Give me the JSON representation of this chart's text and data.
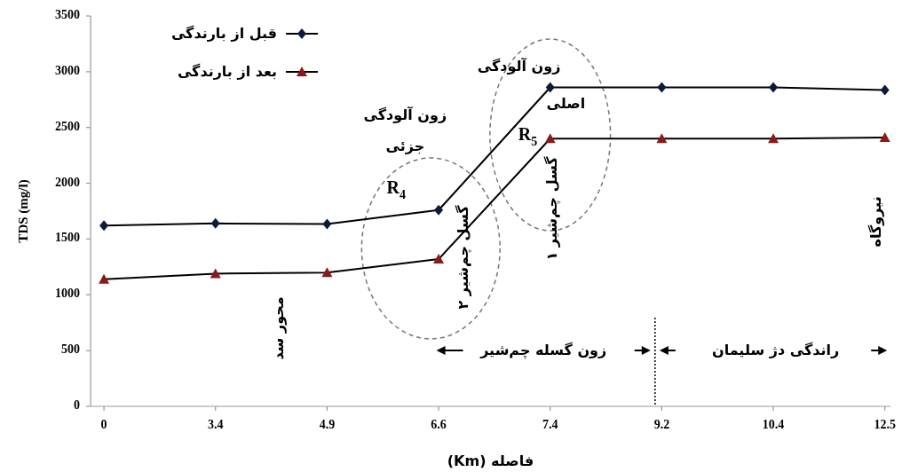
{
  "chart_data": {
    "type": "line",
    "xlabel": "فاصله (Km)",
    "ylabel": "TDS (mg/l)",
    "categories": [
      "0",
      "3.4",
      "4.9",
      "6.6",
      "7.4",
      "9.2",
      "10.4",
      "12.5"
    ],
    "series": [
      {
        "name": "قبل از بارندگی",
        "color": "#0d1b3a",
        "marker": "diamond",
        "values": [
          1620,
          1640,
          1635,
          1760,
          2860,
          2860,
          2860,
          2835
        ]
      },
      {
        "name": "بعد از بارندگی",
        "color": "#8b1a1a",
        "marker": "triangle",
        "values": [
          1140,
          1190,
          1200,
          1320,
          2400,
          2400,
          2400,
          2410
        ]
      }
    ],
    "ylim": [
      0,
      3500
    ],
    "yticks": [
      0,
      500,
      1000,
      1500,
      2000,
      2500,
      3000,
      3500
    ],
    "legend": "top left",
    "grid": false,
    "annotations": [
      "زون آلودگی",
      "جزئی",
      "زون آلودگی",
      "اصلی",
      "R$_{4}$",
      "R$_{5}$",
      "گسل چم‌شیر ۲",
      "گسل چم‌شیر ۱",
      "محور سد",
      "نیروگاه",
      "زون گسله چم‌شیر",
      "راندگی دژ سلیمان"
    ]
  }
}
